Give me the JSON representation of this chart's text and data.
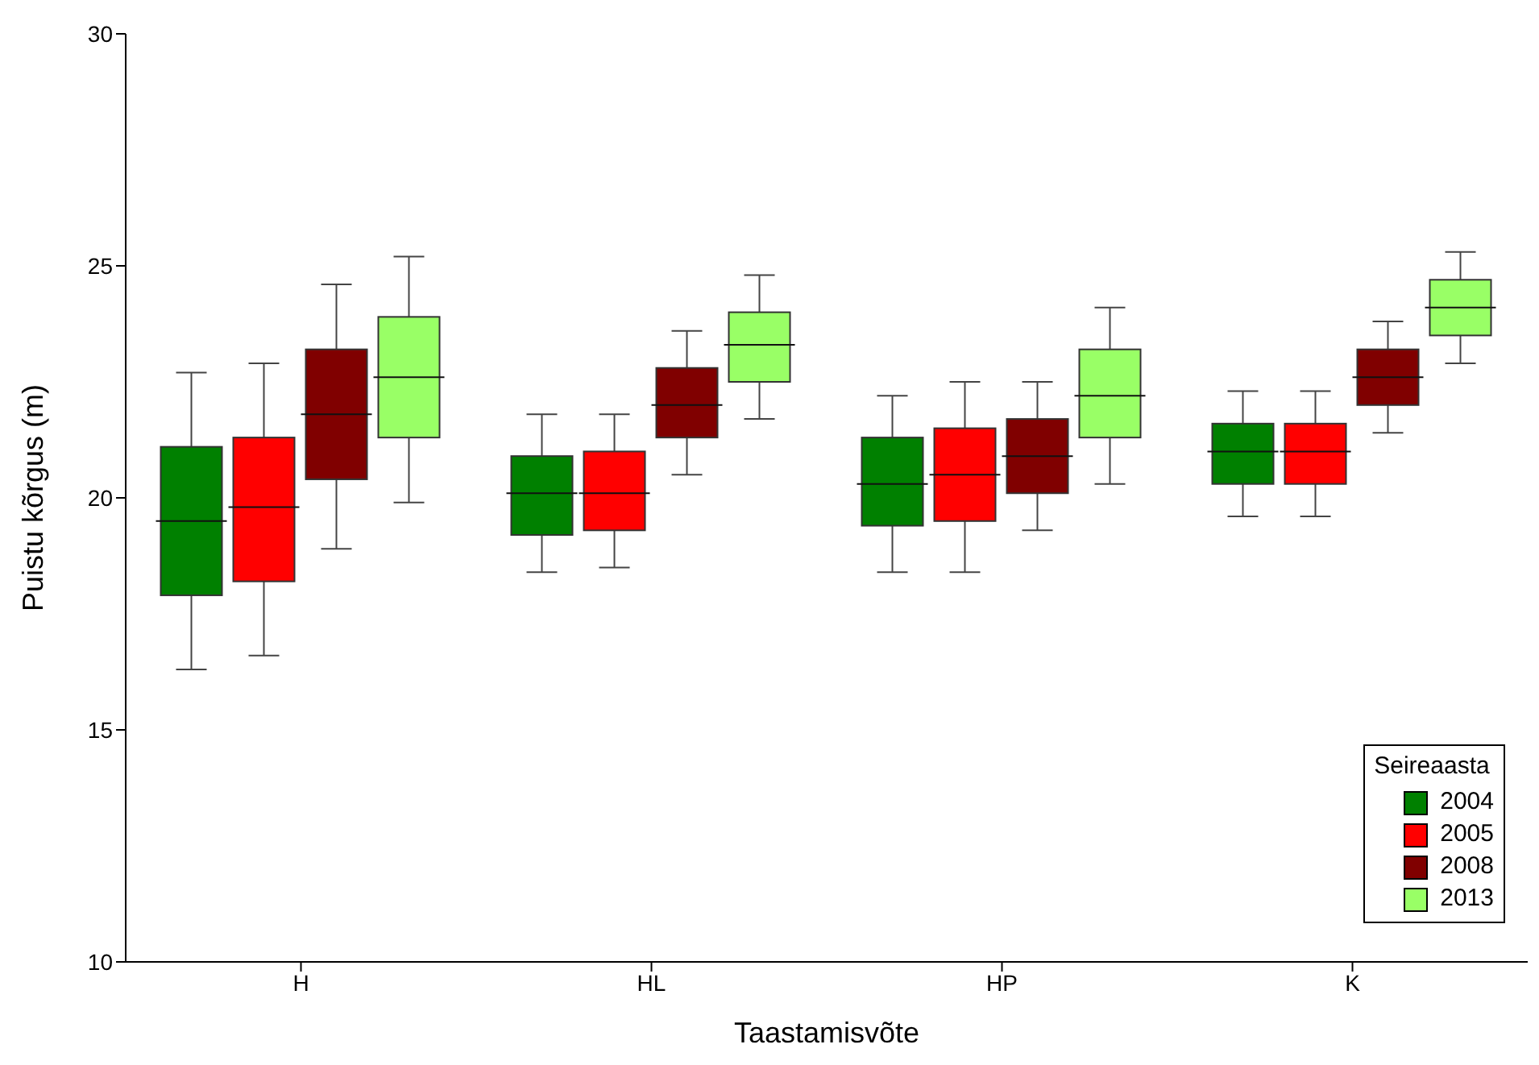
{
  "chart_data": {
    "type": "box",
    "xlabel": "Taastamisvõte",
    "ylabel": "Puistu kõrgus (m)",
    "legend_title": "Seireaasta",
    "categories": [
      "H",
      "HL",
      "HP",
      "K"
    ],
    "ylim": [
      10,
      30
    ],
    "yticks": [
      10,
      15,
      20,
      25,
      30
    ],
    "legend": "bottom right",
    "series": [
      {
        "name": "2004",
        "color": "#008000",
        "boxes": [
          {
            "low": 16.3,
            "q1": 17.9,
            "median": 19.5,
            "q3": 21.1,
            "high": 22.7
          },
          {
            "low": 18.4,
            "q1": 19.2,
            "median": 20.1,
            "q3": 20.9,
            "high": 21.8
          },
          {
            "low": 18.4,
            "q1": 19.4,
            "median": 20.3,
            "q3": 21.3,
            "high": 22.2
          },
          {
            "low": 19.6,
            "q1": 20.3,
            "median": 21.0,
            "q3": 21.6,
            "high": 22.3
          }
        ]
      },
      {
        "name": "2005",
        "color": "#ff0000",
        "boxes": [
          {
            "low": 16.6,
            "q1": 18.2,
            "median": 19.8,
            "q3": 21.3,
            "high": 22.9
          },
          {
            "low": 18.5,
            "q1": 19.3,
            "median": 20.1,
            "q3": 21.0,
            "high": 21.8
          },
          {
            "low": 18.4,
            "q1": 19.5,
            "median": 20.5,
            "q3": 21.5,
            "high": 22.5
          },
          {
            "low": 19.6,
            "q1": 20.3,
            "median": 21.0,
            "q3": 21.6,
            "high": 22.3
          }
        ]
      },
      {
        "name": "2008",
        "color": "#800000",
        "boxes": [
          {
            "low": 18.9,
            "q1": 20.4,
            "median": 21.8,
            "q3": 23.2,
            "high": 24.6
          },
          {
            "low": 20.5,
            "q1": 21.3,
            "median": 22.0,
            "q3": 22.8,
            "high": 23.6
          },
          {
            "low": 19.3,
            "q1": 20.1,
            "median": 20.9,
            "q3": 21.7,
            "high": 22.5
          },
          {
            "low": 21.4,
            "q1": 22.0,
            "median": 22.6,
            "q3": 23.2,
            "high": 23.8
          }
        ]
      },
      {
        "name": "2013",
        "color": "#99ff66",
        "boxes": [
          {
            "low": 19.9,
            "q1": 21.3,
            "median": 22.6,
            "q3": 23.9,
            "high": 25.2
          },
          {
            "low": 21.7,
            "q1": 22.5,
            "median": 23.3,
            "q3": 24.0,
            "high": 24.8
          },
          {
            "low": 20.3,
            "q1": 21.3,
            "median": 22.2,
            "q3": 23.2,
            "high": 24.1
          },
          {
            "low": 22.9,
            "q1": 23.5,
            "median": 24.1,
            "q3": 24.7,
            "high": 25.3
          }
        ]
      }
    ]
  }
}
